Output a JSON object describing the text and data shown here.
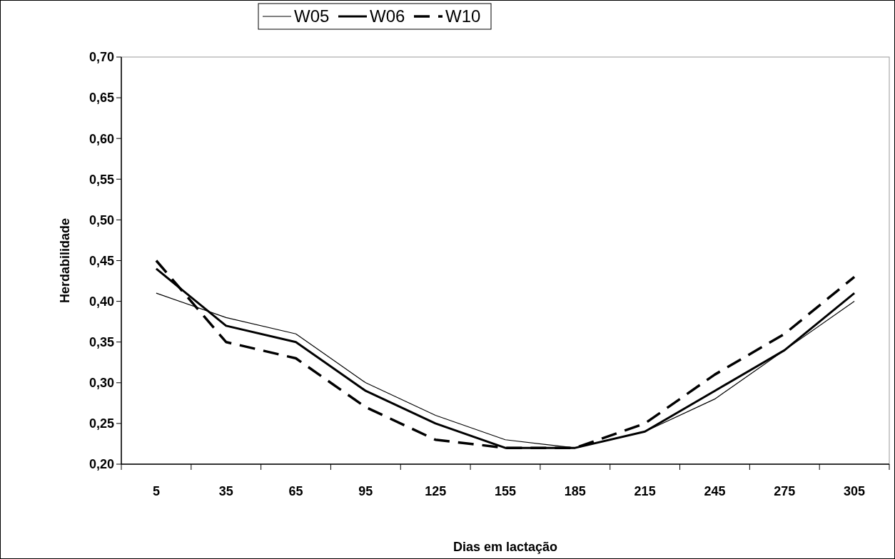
{
  "chart_data": {
    "type": "line",
    "xlabel": "Dias em lactação",
    "ylabel": "Herdabilidade",
    "categories": [
      "5",
      "35",
      "65",
      "95",
      "125",
      "155",
      "185",
      "215",
      "245",
      "275",
      "305"
    ],
    "series": [
      {
        "name": "W05",
        "color": "#000000",
        "line_style": "solid",
        "values": [
          0.41,
          0.38,
          0.36,
          0.3,
          0.26,
          0.23,
          0.22,
          0.24,
          0.28,
          0.34,
          0.4
        ]
      },
      {
        "name": "W06",
        "color": "#000000",
        "line_style": "solid",
        "values": [
          0.44,
          0.37,
          0.35,
          0.29,
          0.25,
          0.22,
          0.22,
          0.24,
          0.29,
          0.34,
          0.41
        ]
      },
      {
        "name": "W10",
        "color": "#000000",
        "line_style": "dashed",
        "values": [
          0.45,
          0.35,
          0.33,
          0.27,
          0.23,
          0.22,
          0.22,
          0.25,
          0.31,
          0.36,
          0.43
        ]
      }
    ],
    "ylim": [
      0.2,
      0.7
    ],
    "yticks": [
      {
        "value": 0.2,
        "label": "0,20"
      },
      {
        "value": 0.25,
        "label": "0,25"
      },
      {
        "value": 0.3,
        "label": "0,30"
      },
      {
        "value": 0.35,
        "label": "0,35"
      },
      {
        "value": 0.4,
        "label": "0,40"
      },
      {
        "value": 0.45,
        "label": "0,45"
      },
      {
        "value": 0.5,
        "label": "0,50"
      },
      {
        "value": 0.55,
        "label": "0,55"
      },
      {
        "value": 0.6,
        "label": "0,60"
      },
      {
        "value": 0.65,
        "label": "0,65"
      },
      {
        "value": 0.7,
        "label": "0,70"
      }
    ],
    "grid": false,
    "legend": "top",
    "marker": "none"
  }
}
